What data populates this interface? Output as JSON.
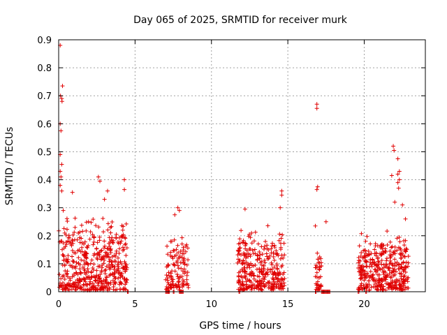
{
  "chart_data": {
    "type": "scatter",
    "title": "Day 065 of 2025, SRMTID for receiver murk",
    "xlabel": "GPS time / hours",
    "ylabel": "SRMTID / TECUs",
    "xlim": [
      0,
      24
    ],
    "ylim": [
      0,
      0.9
    ],
    "xticks": [
      0,
      5,
      10,
      15,
      20
    ],
    "yticks": [
      0,
      0.1,
      0.2,
      0.3,
      0.4,
      0.5,
      0.6,
      0.7,
      0.8,
      0.9
    ],
    "grid": true,
    "marker": "plus",
    "color": "#e00000",
    "clusters": [
      {
        "x_start": 0.0,
        "x_end": 4.5,
        "y_typical_max": 0.25,
        "density": 500
      },
      {
        "x_start": 7.0,
        "x_end": 8.5,
        "y_typical_max": 0.2,
        "density": 120
      },
      {
        "x_start": 11.7,
        "x_end": 14.8,
        "y_typical_max": 0.22,
        "density": 330
      },
      {
        "x_start": 16.8,
        "x_end": 17.2,
        "y_typical_max": 0.15,
        "density": 40
      },
      {
        "x_start": 19.6,
        "x_end": 22.9,
        "y_typical_max": 0.2,
        "density": 380
      }
    ],
    "outliers": [
      {
        "x": 0.1,
        "y": 0.88
      },
      {
        "x": 0.25,
        "y": 0.735
      },
      {
        "x": 0.12,
        "y": 0.7
      },
      {
        "x": 0.2,
        "y": 0.69
      },
      {
        "x": 0.22,
        "y": 0.68
      },
      {
        "x": 0.1,
        "y": 0.6
      },
      {
        "x": 0.15,
        "y": 0.575
      },
      {
        "x": 0.1,
        "y": 0.49
      },
      {
        "x": 0.2,
        "y": 0.455
      },
      {
        "x": 0.1,
        "y": 0.43
      },
      {
        "x": 0.15,
        "y": 0.41
      },
      {
        "x": 0.1,
        "y": 0.38
      },
      {
        "x": 0.2,
        "y": 0.36
      },
      {
        "x": 0.3,
        "y": 0.29
      },
      {
        "x": 0.9,
        "y": 0.355
      },
      {
        "x": 2.6,
        "y": 0.41
      },
      {
        "x": 2.7,
        "y": 0.395
      },
      {
        "x": 3.2,
        "y": 0.36
      },
      {
        "x": 4.3,
        "y": 0.4
      },
      {
        "x": 4.3,
        "y": 0.365
      },
      {
        "x": 3.0,
        "y": 0.33
      },
      {
        "x": 7.6,
        "y": 0.275
      },
      {
        "x": 7.8,
        "y": 0.3
      },
      {
        "x": 7.9,
        "y": 0.29
      },
      {
        "x": 12.2,
        "y": 0.295
      },
      {
        "x": 14.6,
        "y": 0.36
      },
      {
        "x": 14.6,
        "y": 0.345
      },
      {
        "x": 14.5,
        "y": 0.3
      },
      {
        "x": 16.9,
        "y": 0.67
      },
      {
        "x": 16.9,
        "y": 0.655
      },
      {
        "x": 16.95,
        "y": 0.375
      },
      {
        "x": 16.9,
        "y": 0.365
      },
      {
        "x": 17.5,
        "y": 0.25
      },
      {
        "x": 16.8,
        "y": 0.235
      },
      {
        "x": 21.9,
        "y": 0.52
      },
      {
        "x": 21.95,
        "y": 0.505
      },
      {
        "x": 22.2,
        "y": 0.475
      },
      {
        "x": 22.3,
        "y": 0.43
      },
      {
        "x": 22.2,
        "y": 0.42
      },
      {
        "x": 22.3,
        "y": 0.4
      },
      {
        "x": 22.2,
        "y": 0.39
      },
      {
        "x": 22.25,
        "y": 0.37
      },
      {
        "x": 21.8,
        "y": 0.415
      },
      {
        "x": 22.0,
        "y": 0.32
      },
      {
        "x": 22.7,
        "y": 0.26
      },
      {
        "x": 22.5,
        "y": 0.31
      }
    ],
    "zero_points": [
      4.5,
      7.0,
      7.1,
      7.2,
      7.5,
      7.9,
      8.0,
      8.1,
      11.8,
      16.8,
      17.2,
      17.3,
      17.4,
      17.5,
      17.6,
      17.7,
      19.6,
      20.1
    ]
  }
}
